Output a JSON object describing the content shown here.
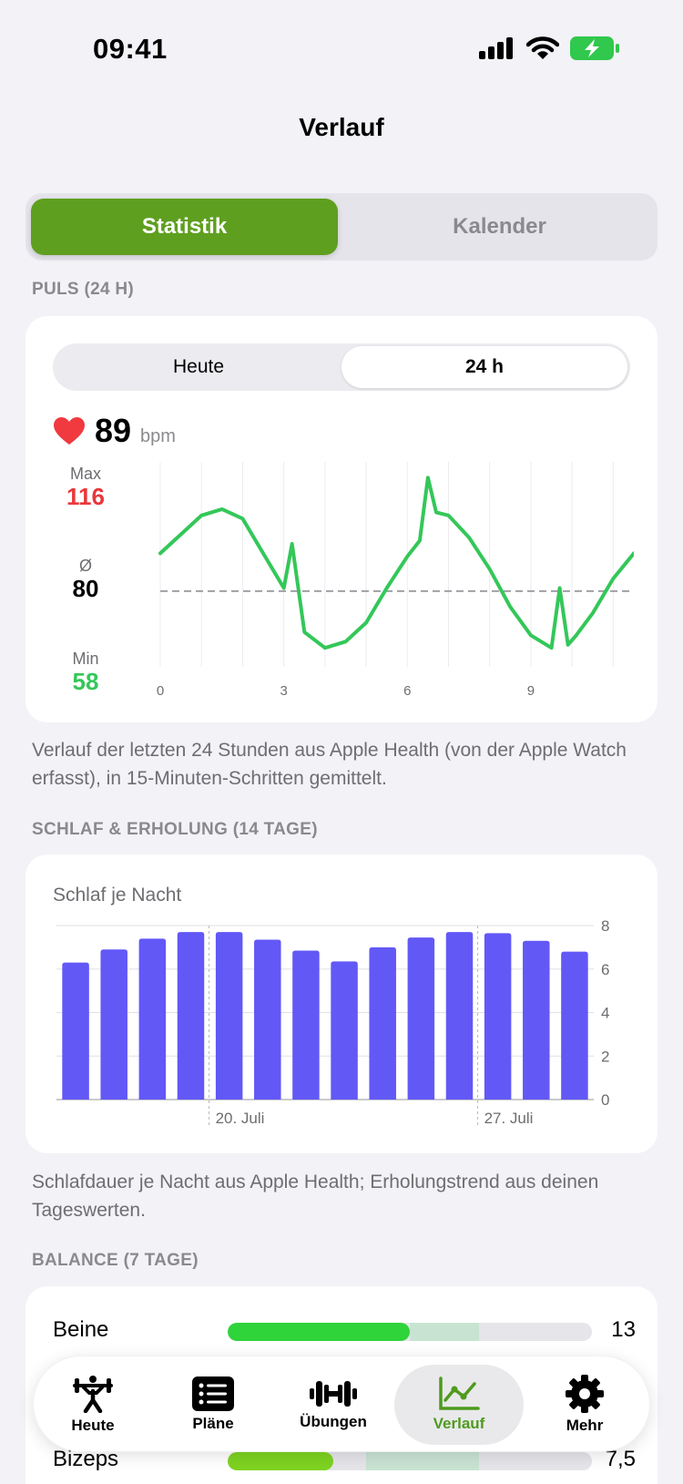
{
  "status_bar": {
    "time": "09:41"
  },
  "nav": {
    "title": "Verlauf"
  },
  "segmented": {
    "active": "Statistik",
    "inactive": "Kalender"
  },
  "pulse": {
    "header": "PULS (24 H)",
    "range": {
      "left": "Heute",
      "right": "24 h",
      "selected": "24 h"
    },
    "current_value": "89",
    "unit": "bpm",
    "max_label": "Max",
    "max_value": "116",
    "avg_label": "Ø",
    "avg_value": "80",
    "min_label": "Min",
    "min_value": "58",
    "footnote": "Verlauf der letzten 24 Stunden aus Apple Health (von der Apple Watch erfasst), in 15-Minuten-Schritten gemittelt."
  },
  "sleep": {
    "header": "SCHLAF & ERHOLUNG (14 TAGE)",
    "card_title": "Schlaf je Nacht",
    "footnote": "Schlafdauer je Nacht aus Apple Health; Erholungstrend aus deinen Tageswerten."
  },
  "balance": {
    "header": "BALANCE (7 TAGE)",
    "rows": [
      {
        "label": "Beine",
        "value": "13",
        "fill": 0.5,
        "range_start": 0.5,
        "range_end": 0.69,
        "color": "#2fd33a"
      },
      {
        "label": "Bizeps",
        "value": "7,5",
        "fill": 0.29,
        "range_start": 0.38,
        "range_end": 0.69,
        "color": "#7ed321"
      }
    ]
  },
  "tabs": [
    {
      "label": "Heute",
      "icon": "weightlifter-icon"
    },
    {
      "label": "Pläne",
      "icon": "list-icon"
    },
    {
      "label": "Übungen",
      "icon": "dumbbell-icon"
    },
    {
      "label": "Verlauf",
      "icon": "chart-line-icon",
      "active": true
    },
    {
      "label": "Mehr",
      "icon": "gear-icon"
    }
  ],
  "colors": {
    "accent": "#5f9f1f",
    "heart": "#f03a3f",
    "pulse_line": "#34c759",
    "sleep_bar": "#6258f6",
    "max": "#e8383d",
    "min": "#34c759"
  },
  "chart_data": [
    {
      "type": "line",
      "x": [
        0,
        0.5,
        1,
        1.5,
        2,
        2.5,
        3,
        3.2,
        3.5,
        4,
        4.5,
        5,
        5.5,
        6,
        6.3,
        6.5,
        6.7,
        7,
        7.5,
        8,
        8.5,
        9,
        9.5,
        9.7,
        9.9,
        10.1,
        10.5,
        11,
        11.5
      ],
      "y": [
        92,
        98,
        104,
        106,
        103,
        92,
        81,
        95,
        67,
        62,
        64,
        70,
        81,
        91,
        96,
        116,
        105,
        104,
        97,
        87,
        75,
        66,
        62,
        81,
        63,
        66,
        73,
        84,
        92
      ],
      "avg": 80,
      "xlim": [
        0,
        11.5
      ],
      "ylim": [
        56,
        121
      ],
      "x_ticks": [
        "0",
        "3",
        "6",
        "9"
      ],
      "x_tick_values": [
        0,
        3,
        6,
        9
      ],
      "grid": true
    },
    {
      "type": "bar",
      "values": [
        6.3,
        6.9,
        7.4,
        7.7,
        7.7,
        7.35,
        6.85,
        6.35,
        7.0,
        7.45,
        7.7,
        7.65,
        7.3,
        6.8
      ],
      "y_ticks": [
        "0",
        "2",
        "4",
        "6",
        "8"
      ],
      "ylim": [
        0,
        8
      ],
      "x_labels": [
        {
          "index": 4,
          "label": "20. Juli"
        },
        {
          "index": 11,
          "label": "27. Juli"
        }
      ],
      "grid": true
    }
  ]
}
